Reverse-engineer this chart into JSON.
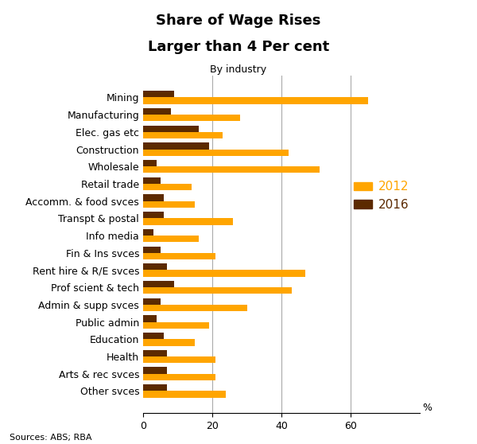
{
  "title_line1": "Share of Wage Rises",
  "title_line2": "Larger than 4 Per cent",
  "subtitle": "By industry",
  "categories": [
    "Mining",
    "Manufacturing",
    "Elec. gas etc",
    "Construction",
    "Wholesale",
    "Retail trade",
    "Accomm. & food svces",
    "Transpt & postal",
    "Info media",
    "Fin & Ins svces",
    "Rent hire & R/E svces",
    "Prof scient & tech",
    "Admin & supp svces",
    "Public admin",
    "Education",
    "Health",
    "Arts & rec svces",
    "Other svces"
  ],
  "values_2012": [
    65,
    28,
    23,
    42,
    51,
    14,
    15,
    26,
    16,
    21,
    47,
    43,
    30,
    19,
    15,
    21,
    21,
    24
  ],
  "values_2016": [
    9,
    8,
    16,
    19,
    4,
    5,
    6,
    6,
    3,
    5,
    7,
    9,
    5,
    4,
    6,
    7,
    7,
    7
  ],
  "color_2012": "#FFA500",
  "color_2016": "#5C2A00",
  "xlabel": "%",
  "xlim": [
    0,
    80
  ],
  "xticks": [
    0,
    20,
    40,
    60
  ],
  "gridline_color": "#aaaaaa",
  "source_text": "Sources: ABS; RBA",
  "legend_2012_color": "#FFA500",
  "legend_2016_color": "#5C2A00"
}
